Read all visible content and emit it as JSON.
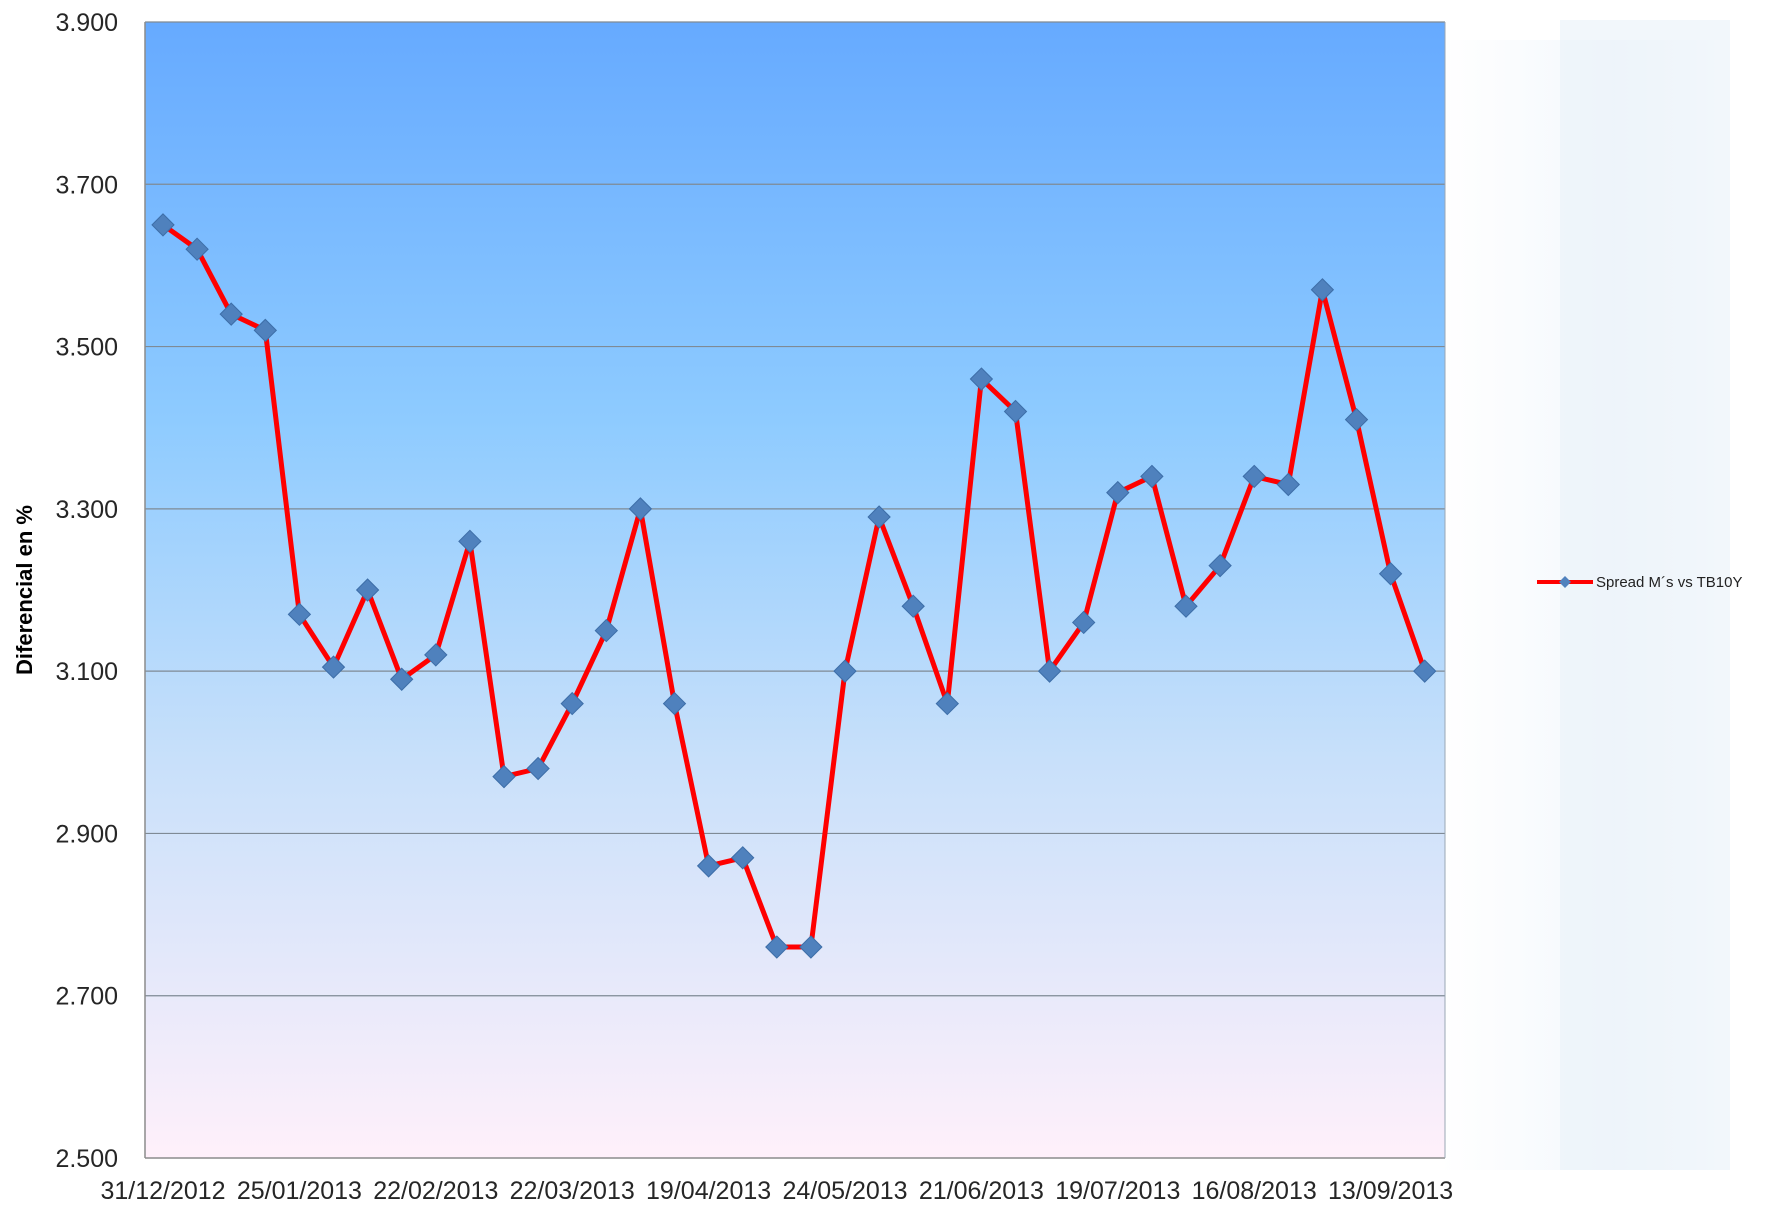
{
  "chart_data": {
    "type": "line",
    "title": "",
    "xlabel": "",
    "ylabel": "Diferencial en %",
    "ylim": [
      2.5,
      3.9
    ],
    "y_ticks": [
      "3.900",
      "3.700",
      "3.500",
      "3.300",
      "3.100",
      "2.900",
      "2.700",
      "2.500"
    ],
    "y_tick_values": [
      3.9,
      3.7,
      3.5,
      3.3,
      3.1,
      2.9,
      2.7,
      2.5
    ],
    "x_tick_labels": [
      "31/12/2012",
      "25/01/2013",
      "22/02/2013",
      "22/03/2013",
      "19/04/2013",
      "24/05/2013",
      "21/06/2013",
      "19/07/2013",
      "16/08/2013",
      "13/09/2013"
    ],
    "x_tick_indices": [
      0,
      4,
      8,
      12,
      16,
      20,
      24,
      28,
      32,
      36
    ],
    "grid": "horizontal",
    "legend_position": "right",
    "series": [
      {
        "name": "Spread M´s vs TB10Y",
        "color": "#ff0000",
        "marker_color": "#4f81bd",
        "marker": "diamond",
        "values": [
          3.65,
          3.62,
          3.54,
          3.52,
          3.17,
          3.105,
          3.2,
          3.09,
          3.12,
          3.26,
          2.97,
          2.98,
          3.06,
          3.15,
          3.3,
          3.06,
          2.86,
          2.87,
          2.76,
          2.76,
          3.1,
          3.29,
          3.18,
          3.06,
          3.46,
          3.42,
          3.1,
          3.16,
          3.32,
          3.34,
          3.18,
          3.23,
          3.34,
          3.33,
          3.57,
          3.41,
          3.22,
          3.1
        ]
      }
    ],
    "plot_gradient": [
      "#66aaff",
      "#8ecbff",
      "#c8e0fa",
      "#fff0fa"
    ]
  }
}
